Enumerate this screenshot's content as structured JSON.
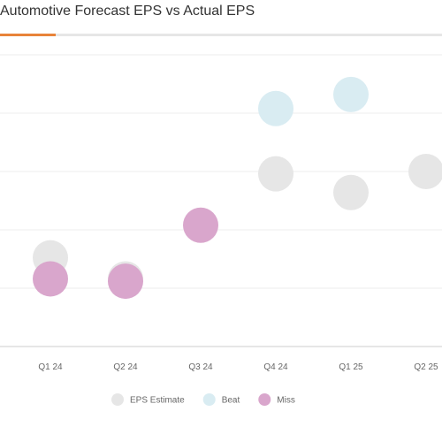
{
  "chart_data": {
    "type": "scatter",
    "title": "Automotive Forecast EPS vs Actual EPS",
    "categories": [
      "Q1 24",
      "Q2 24",
      "Q3 24",
      "Q4 24",
      "Q1 25",
      "Q2 25"
    ],
    "series": [
      {
        "name": "EPS Estimate",
        "color": "#e6e6e6",
        "values": [
          0.38,
          0.29,
          null,
          0.74,
          0.66,
          0.75
        ]
      },
      {
        "name": "Beat",
        "color": "#d9ecf2",
        "values": [
          null,
          null,
          null,
          1.02,
          1.08,
          null
        ]
      },
      {
        "name": "Miss",
        "color": "#d9a6cc",
        "values": [
          0.29,
          0.28,
          0.52,
          null,
          null,
          null
        ]
      }
    ],
    "ylim": [
      0,
      1.25
    ],
    "grid": true,
    "legend_position": "bottom"
  }
}
